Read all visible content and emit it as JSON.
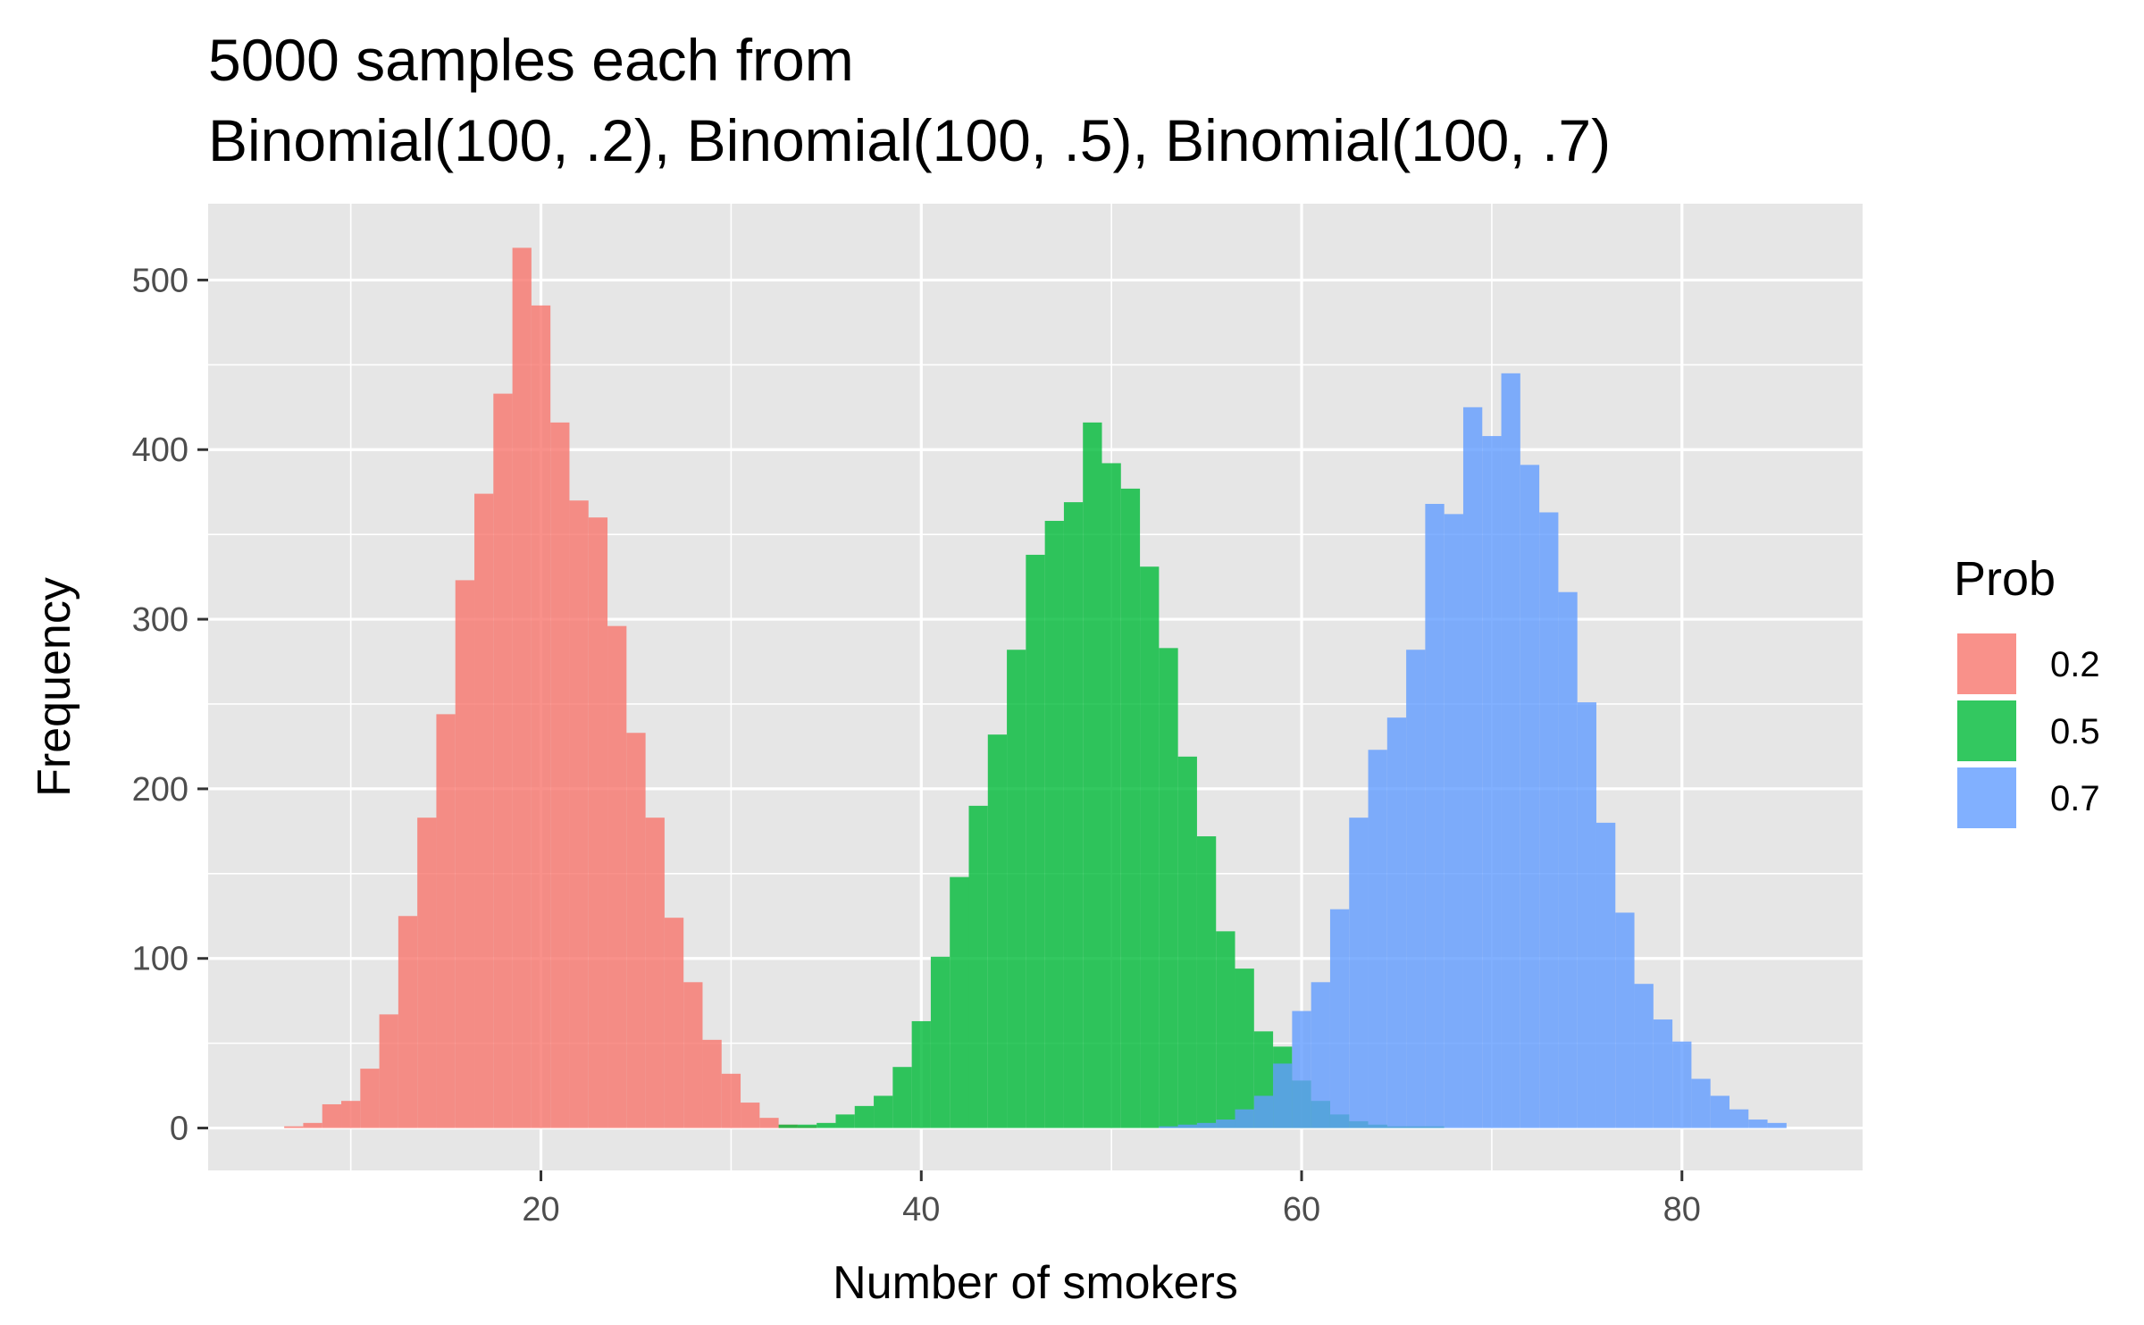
{
  "chart_data": {
    "type": "bar",
    "title_lines": [
      "5000 samples each from",
      "Binomial(100, .2), Binomial(100, .5), Binomial(100, .7)"
    ],
    "xlabel": "Number of smokers",
    "ylabel": "Frequency",
    "xlim": [
      2.5,
      89.5
    ],
    "ylim": [
      -25,
      545
    ],
    "x_ticks": [
      20,
      40,
      60,
      80
    ],
    "y_ticks": [
      0,
      100,
      200,
      300,
      400,
      500
    ],
    "grid": true,
    "legend": {
      "title": "Prob",
      "position": "right"
    },
    "bin_width": 1,
    "series": [
      {
        "name": "0.2",
        "color": "#F8766D",
        "x": [
          7,
          8,
          9,
          10,
          11,
          12,
          13,
          14,
          15,
          16,
          17,
          18,
          19,
          20,
          21,
          22,
          23,
          24,
          25,
          26,
          27,
          28,
          29,
          30,
          31,
          32,
          33,
          34
        ],
        "values": [
          1,
          3,
          14,
          16,
          35,
          67,
          125,
          183,
          244,
          323,
          374,
          433,
          519,
          485,
          416,
          370,
          360,
          296,
          233,
          183,
          124,
          86,
          52,
          32,
          15,
          6,
          2,
          1
        ]
      },
      {
        "name": "0.5",
        "color": "#00BA38",
        "x": [
          33,
          34,
          35,
          36,
          37,
          38,
          39,
          40,
          41,
          42,
          43,
          44,
          45,
          46,
          47,
          48,
          49,
          50,
          51,
          52,
          53,
          54,
          55,
          56,
          57,
          58,
          59,
          60,
          61,
          62,
          63,
          64,
          65,
          66,
          67
        ],
        "values": [
          2,
          2,
          3,
          8,
          13,
          19,
          36,
          63,
          101,
          148,
          190,
          232,
          282,
          338,
          358,
          369,
          416,
          392,
          377,
          331,
          283,
          219,
          172,
          116,
          94,
          57,
          48,
          28,
          16,
          8,
          4,
          2,
          1,
          1,
          1
        ]
      },
      {
        "name": "0.7",
        "color": "#619CFF",
        "x": [
          53,
          54,
          55,
          56,
          57,
          58,
          59,
          60,
          61,
          62,
          63,
          64,
          65,
          66,
          67,
          68,
          69,
          70,
          71,
          72,
          73,
          74,
          75,
          76,
          77,
          78,
          79,
          80,
          81,
          82,
          83,
          84,
          85
        ],
        "values": [
          1,
          2,
          3,
          5,
          11,
          19,
          38,
          69,
          86,
          129,
          183,
          223,
          242,
          282,
          368,
          362,
          425,
          408,
          445,
          391,
          363,
          316,
          251,
          180,
          127,
          85,
          64,
          51,
          29,
          19,
          11,
          5,
          3
        ]
      }
    ]
  }
}
